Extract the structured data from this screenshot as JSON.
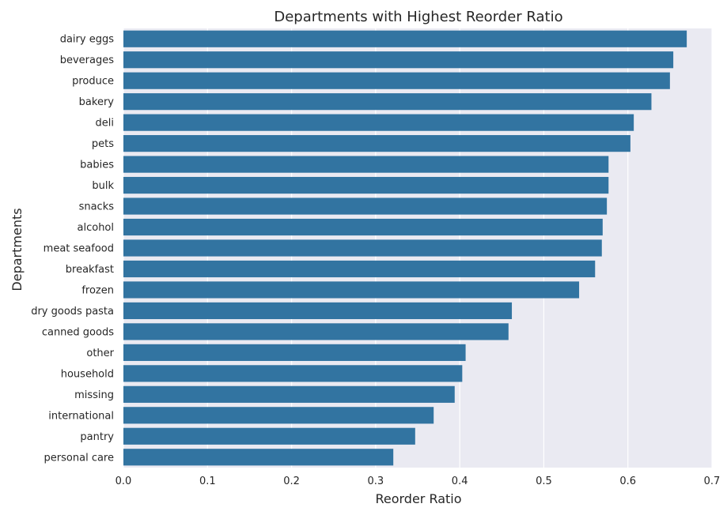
{
  "chart_data": {
    "type": "bar",
    "orientation": "horizontal",
    "title": "Departments with Highest Reorder Ratio",
    "xlabel": "Reorder Ratio",
    "ylabel": "Departments",
    "xlim": [
      0,
      0.7
    ],
    "xticks": [
      "0.0",
      "0.1",
      "0.2",
      "0.3",
      "0.4",
      "0.5",
      "0.6",
      "0.7"
    ],
    "xtick_values": [
      0,
      0.1,
      0.2,
      0.3,
      0.4,
      0.5,
      0.6,
      0.7
    ],
    "grid": true,
    "bar_color": "#3274a1",
    "background_color": "#eaeaf2",
    "grid_color": "#ffffff",
    "categories": [
      "dairy eggs",
      "beverages",
      "produce",
      "bakery",
      "deli",
      "pets",
      "babies",
      "bulk",
      "snacks",
      "alcohol",
      "meat seafood",
      "breakfast",
      "frozen",
      "dry goods pasta",
      "canned goods",
      "other",
      "household",
      "missing",
      "international",
      "pantry",
      "personal care"
    ],
    "values": [
      0.67,
      0.654,
      0.65,
      0.628,
      0.607,
      0.603,
      0.577,
      0.577,
      0.575,
      0.57,
      0.569,
      0.561,
      0.542,
      0.462,
      0.458,
      0.407,
      0.403,
      0.394,
      0.369,
      0.347,
      0.321
    ]
  }
}
